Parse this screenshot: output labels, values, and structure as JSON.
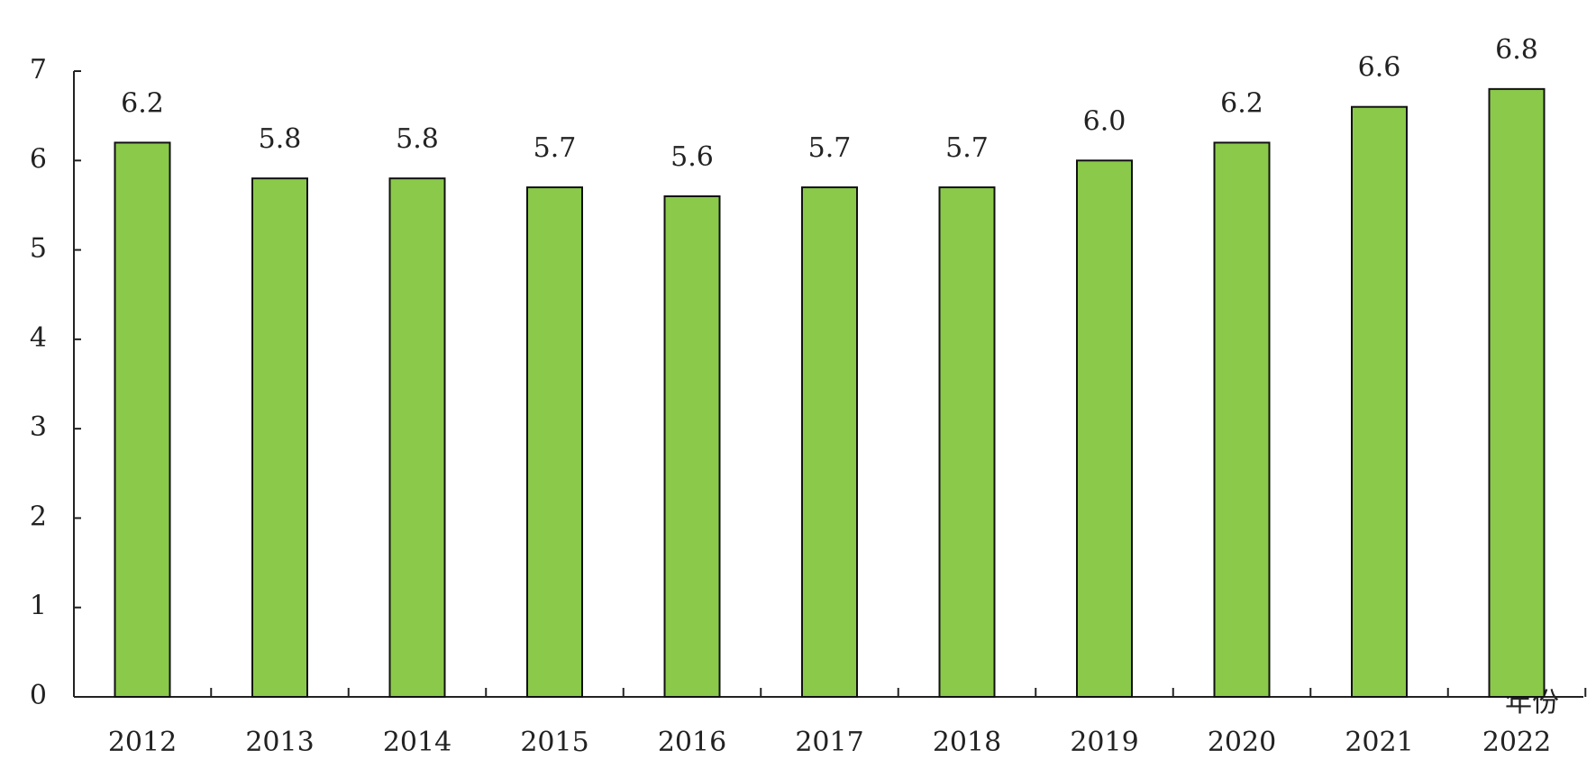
{
  "chart_data": {
    "type": "bar",
    "x_label": "年份",
    "categories": [
      "2012",
      "2013",
      "2014",
      "2015",
      "2016",
      "2017",
      "2018",
      "2019",
      "2020",
      "2021",
      "2022"
    ],
    "values": [
      6.2,
      5.8,
      5.8,
      5.7,
      5.6,
      5.7,
      5.7,
      6.0,
      6.2,
      6.6,
      6.8
    ],
    "value_labels": [
      "6.2",
      "5.8",
      "5.8",
      "5.7",
      "5.6",
      "5.7",
      "5.7",
      "6.0",
      "6.2",
      "6.6",
      "6.8"
    ],
    "color": "#8bc94a",
    "ylim": [
      0,
      7
    ],
    "yticks": [
      0,
      1,
      2,
      3,
      4,
      5,
      6,
      7
    ],
    "grid": false
  }
}
